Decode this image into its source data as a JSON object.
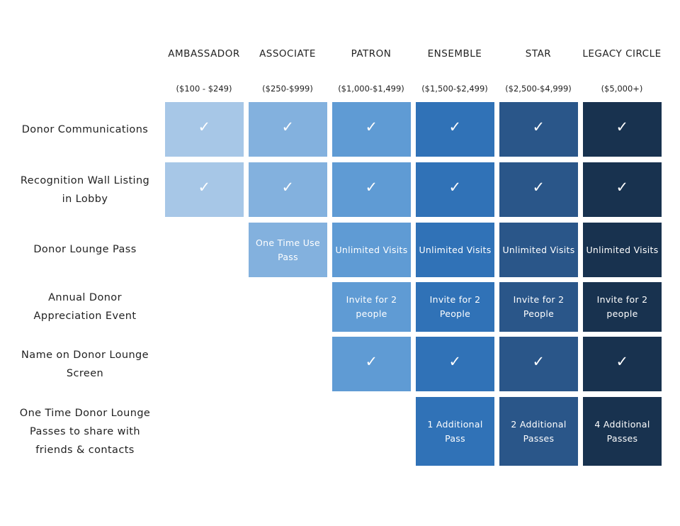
{
  "tiers": [
    {
      "name": "AMBASSADOR",
      "range": "($100 - $249)",
      "color": "#a7c7e7"
    },
    {
      "name": "ASSOCIATE",
      "range": "($250-$999)",
      "color": "#83b1de"
    },
    {
      "name": "PATRON",
      "range": "($1,000-$1,499)",
      "color": "#5f9bd4"
    },
    {
      "name": "ENSEMBLE",
      "range": "($1,500-$2,499)",
      "color": "#3072b7"
    },
    {
      "name": "STAR",
      "range": "($2,500-$4,999)",
      "color": "#2a5689"
    },
    {
      "name": "LEGACY CIRCLE",
      "range": "($5,000+)",
      "color": "#18324f"
    }
  ],
  "check_mark": "✓",
  "rows": [
    {
      "label": "Donor Communications",
      "cells": [
        "✓",
        "✓",
        "✓",
        "✓",
        "✓",
        "✓"
      ]
    },
    {
      "label": "Recognition Wall Listing in Lobby",
      "cells": [
        "✓",
        "✓",
        "✓",
        "✓",
        "✓",
        "✓"
      ]
    },
    {
      "label": "Donor Lounge Pass",
      "cells": [
        "",
        "One Time Use Pass",
        "Unlimited Visits",
        "Unlimited Visits",
        "Unlimited Visits",
        "Unlimited Visits"
      ]
    },
    {
      "label": "Annual Donor Appreciation Event",
      "cells": [
        "",
        "",
        "Invite for 2 people",
        "Invite for 2 People",
        "Invite for 2 People",
        "Invite for 2 people"
      ]
    },
    {
      "label": "Name on Donor Lounge Screen",
      "cells": [
        "",
        "",
        "✓",
        "✓",
        "✓",
        "✓"
      ]
    },
    {
      "label": "One Time Donor Lounge Passes to share with friends & contacts",
      "cells": [
        "",
        "",
        "",
        "1 Additional Pass",
        "2 Additional Passes",
        "4 Additional Passes"
      ]
    }
  ]
}
